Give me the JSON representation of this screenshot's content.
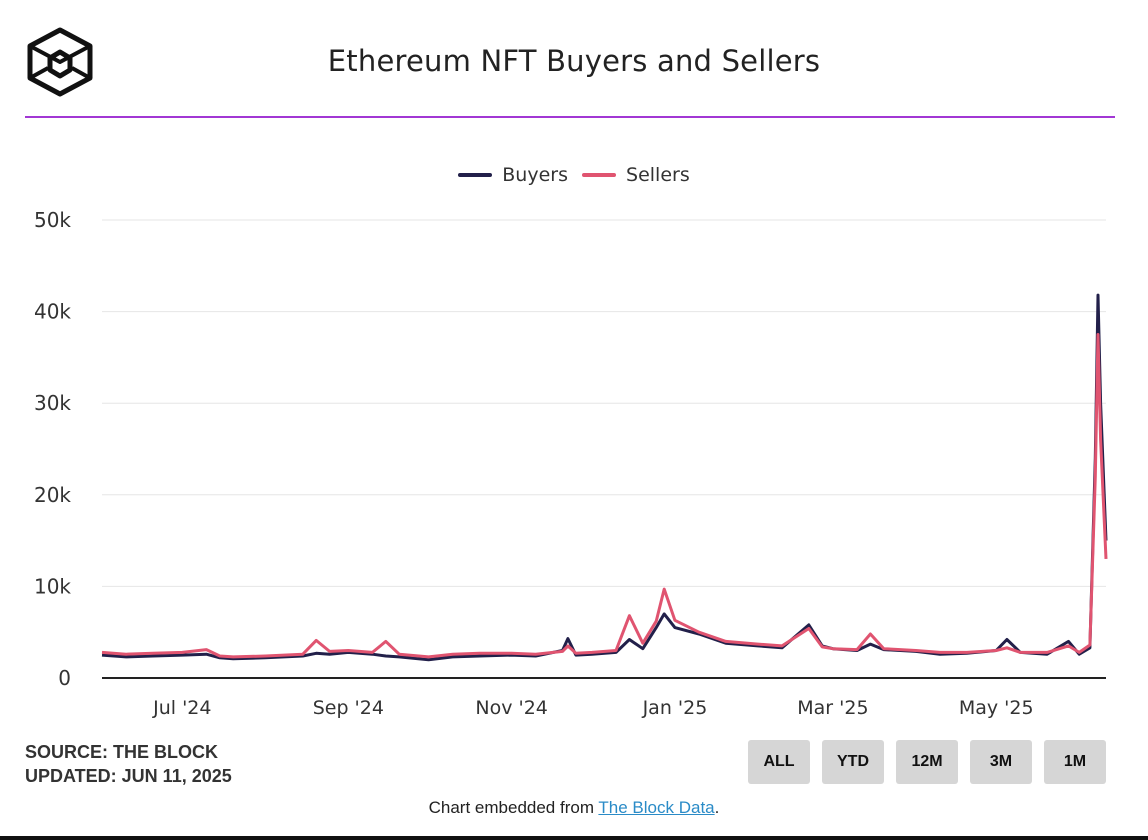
{
  "header": {
    "title": "Ethereum NFT Buyers and Sellers"
  },
  "footer": {
    "source": "SOURCE: THE BLOCK",
    "updated": "UPDATED: JUN 11, 2025",
    "embed_prefix": "Chart embedded from ",
    "embed_link": "The Block Data",
    "embed_suffix": "."
  },
  "range_buttons": [
    "ALL",
    "YTD",
    "12M",
    "3M",
    "1M"
  ],
  "colors": {
    "accent_line": "#a237d4",
    "buyers": "#22204a",
    "sellers": "#e05470",
    "grid": "#e6e6e6",
    "button_bg": "#d6d6d6",
    "link": "#2a8bc7"
  },
  "chart_data": {
    "type": "line",
    "title": "Ethereum NFT Buyers and Sellers",
    "xlabel": "",
    "ylabel": "",
    "ylim": [
      0,
      50000
    ],
    "yticks": [
      0,
      10000,
      20000,
      30000,
      40000,
      50000
    ],
    "ytick_labels": [
      "0",
      "10k",
      "20k",
      "30k",
      "40k",
      "50k"
    ],
    "x_range": [
      "2024-06-01",
      "2025-06-11"
    ],
    "xtick_labels": [
      {
        "date": "2024-07-01",
        "label": "Jul '24"
      },
      {
        "date": "2024-09-01",
        "label": "Sep '24"
      },
      {
        "date": "2024-11-01",
        "label": "Nov '24"
      },
      {
        "date": "2025-01-01",
        "label": "Jan '25"
      },
      {
        "date": "2025-03-01",
        "label": "Mar '25"
      },
      {
        "date": "2025-05-01",
        "label": "May '25"
      }
    ],
    "legend_position": "top-center",
    "series": [
      {
        "name": "Buyers",
        "color": "#22204a",
        "points": [
          [
            "2024-06-01",
            2500
          ],
          [
            "2024-06-10",
            2300
          ],
          [
            "2024-06-20",
            2400
          ],
          [
            "2024-07-01",
            2500
          ],
          [
            "2024-07-10",
            2600
          ],
          [
            "2024-07-15",
            2200
          ],
          [
            "2024-07-20",
            2100
          ],
          [
            "2024-08-01",
            2200
          ],
          [
            "2024-08-15",
            2400
          ],
          [
            "2024-08-20",
            2700
          ],
          [
            "2024-08-25",
            2600
          ],
          [
            "2024-09-01",
            2800
          ],
          [
            "2024-09-10",
            2600
          ],
          [
            "2024-09-15",
            2400
          ],
          [
            "2024-09-20",
            2300
          ],
          [
            "2024-10-01",
            2000
          ],
          [
            "2024-10-10",
            2300
          ],
          [
            "2024-10-20",
            2400
          ],
          [
            "2024-11-01",
            2500
          ],
          [
            "2024-11-10",
            2400
          ],
          [
            "2024-11-20",
            3000
          ],
          [
            "2024-11-22",
            4300
          ],
          [
            "2024-11-25",
            2500
          ],
          [
            "2024-12-01",
            2600
          ],
          [
            "2024-12-10",
            2800
          ],
          [
            "2024-12-15",
            4200
          ],
          [
            "2024-12-20",
            3200
          ],
          [
            "2024-12-25",
            5500
          ],
          [
            "2024-12-28",
            7000
          ],
          [
            "2025-01-01",
            5500
          ],
          [
            "2025-01-10",
            4800
          ],
          [
            "2025-01-20",
            3800
          ],
          [
            "2025-02-01",
            3500
          ],
          [
            "2025-02-10",
            3300
          ],
          [
            "2025-02-20",
            5800
          ],
          [
            "2025-02-25",
            3500
          ],
          [
            "2025-03-01",
            3200
          ],
          [
            "2025-03-10",
            3000
          ],
          [
            "2025-03-15",
            3700
          ],
          [
            "2025-03-20",
            3100
          ],
          [
            "2025-04-01",
            2900
          ],
          [
            "2025-04-10",
            2600
          ],
          [
            "2025-04-20",
            2700
          ],
          [
            "2025-05-01",
            3000
          ],
          [
            "2025-05-05",
            4200
          ],
          [
            "2025-05-10",
            2800
          ],
          [
            "2025-05-20",
            2600
          ],
          [
            "2025-05-28",
            4000
          ],
          [
            "2025-06-01",
            2600
          ],
          [
            "2025-06-05",
            3300
          ],
          [
            "2025-06-07",
            24000
          ],
          [
            "2025-06-08",
            41800
          ],
          [
            "2025-06-09",
            30000
          ],
          [
            "2025-06-11",
            15000
          ]
        ]
      },
      {
        "name": "Sellers",
        "color": "#e05470",
        "points": [
          [
            "2024-06-01",
            2800
          ],
          [
            "2024-06-10",
            2600
          ],
          [
            "2024-06-20",
            2700
          ],
          [
            "2024-07-01",
            2800
          ],
          [
            "2024-07-10",
            3100
          ],
          [
            "2024-07-15",
            2400
          ],
          [
            "2024-07-20",
            2300
          ],
          [
            "2024-08-01",
            2400
          ],
          [
            "2024-08-15",
            2600
          ],
          [
            "2024-08-20",
            4100
          ],
          [
            "2024-08-25",
            2900
          ],
          [
            "2024-09-01",
            3000
          ],
          [
            "2024-09-10",
            2800
          ],
          [
            "2024-09-15",
            4000
          ],
          [
            "2024-09-20",
            2600
          ],
          [
            "2024-10-01",
            2300
          ],
          [
            "2024-10-10",
            2600
          ],
          [
            "2024-10-20",
            2700
          ],
          [
            "2024-11-01",
            2700
          ],
          [
            "2024-11-10",
            2600
          ],
          [
            "2024-11-20",
            2900
          ],
          [
            "2024-11-22",
            3500
          ],
          [
            "2024-11-25",
            2700
          ],
          [
            "2024-12-01",
            2800
          ],
          [
            "2024-12-10",
            3000
          ],
          [
            "2024-12-15",
            6800
          ],
          [
            "2024-12-20",
            3800
          ],
          [
            "2024-12-25",
            6200
          ],
          [
            "2024-12-28",
            9700
          ],
          [
            "2025-01-01",
            6300
          ],
          [
            "2025-01-10",
            5000
          ],
          [
            "2025-01-20",
            4000
          ],
          [
            "2025-02-01",
            3700
          ],
          [
            "2025-02-10",
            3500
          ],
          [
            "2025-02-20",
            5400
          ],
          [
            "2025-02-25",
            3400
          ],
          [
            "2025-03-01",
            3200
          ],
          [
            "2025-03-10",
            3100
          ],
          [
            "2025-03-15",
            4800
          ],
          [
            "2025-03-20",
            3200
          ],
          [
            "2025-04-01",
            3000
          ],
          [
            "2025-04-10",
            2800
          ],
          [
            "2025-04-20",
            2800
          ],
          [
            "2025-05-01",
            3000
          ],
          [
            "2025-05-05",
            3300
          ],
          [
            "2025-05-10",
            2800
          ],
          [
            "2025-05-20",
            2800
          ],
          [
            "2025-05-28",
            3500
          ],
          [
            "2025-06-01",
            2800
          ],
          [
            "2025-06-05",
            3600
          ],
          [
            "2025-06-07",
            22000
          ],
          [
            "2025-06-08",
            37500
          ],
          [
            "2025-06-09",
            26000
          ],
          [
            "2025-06-11",
            13000
          ]
        ]
      }
    ]
  }
}
